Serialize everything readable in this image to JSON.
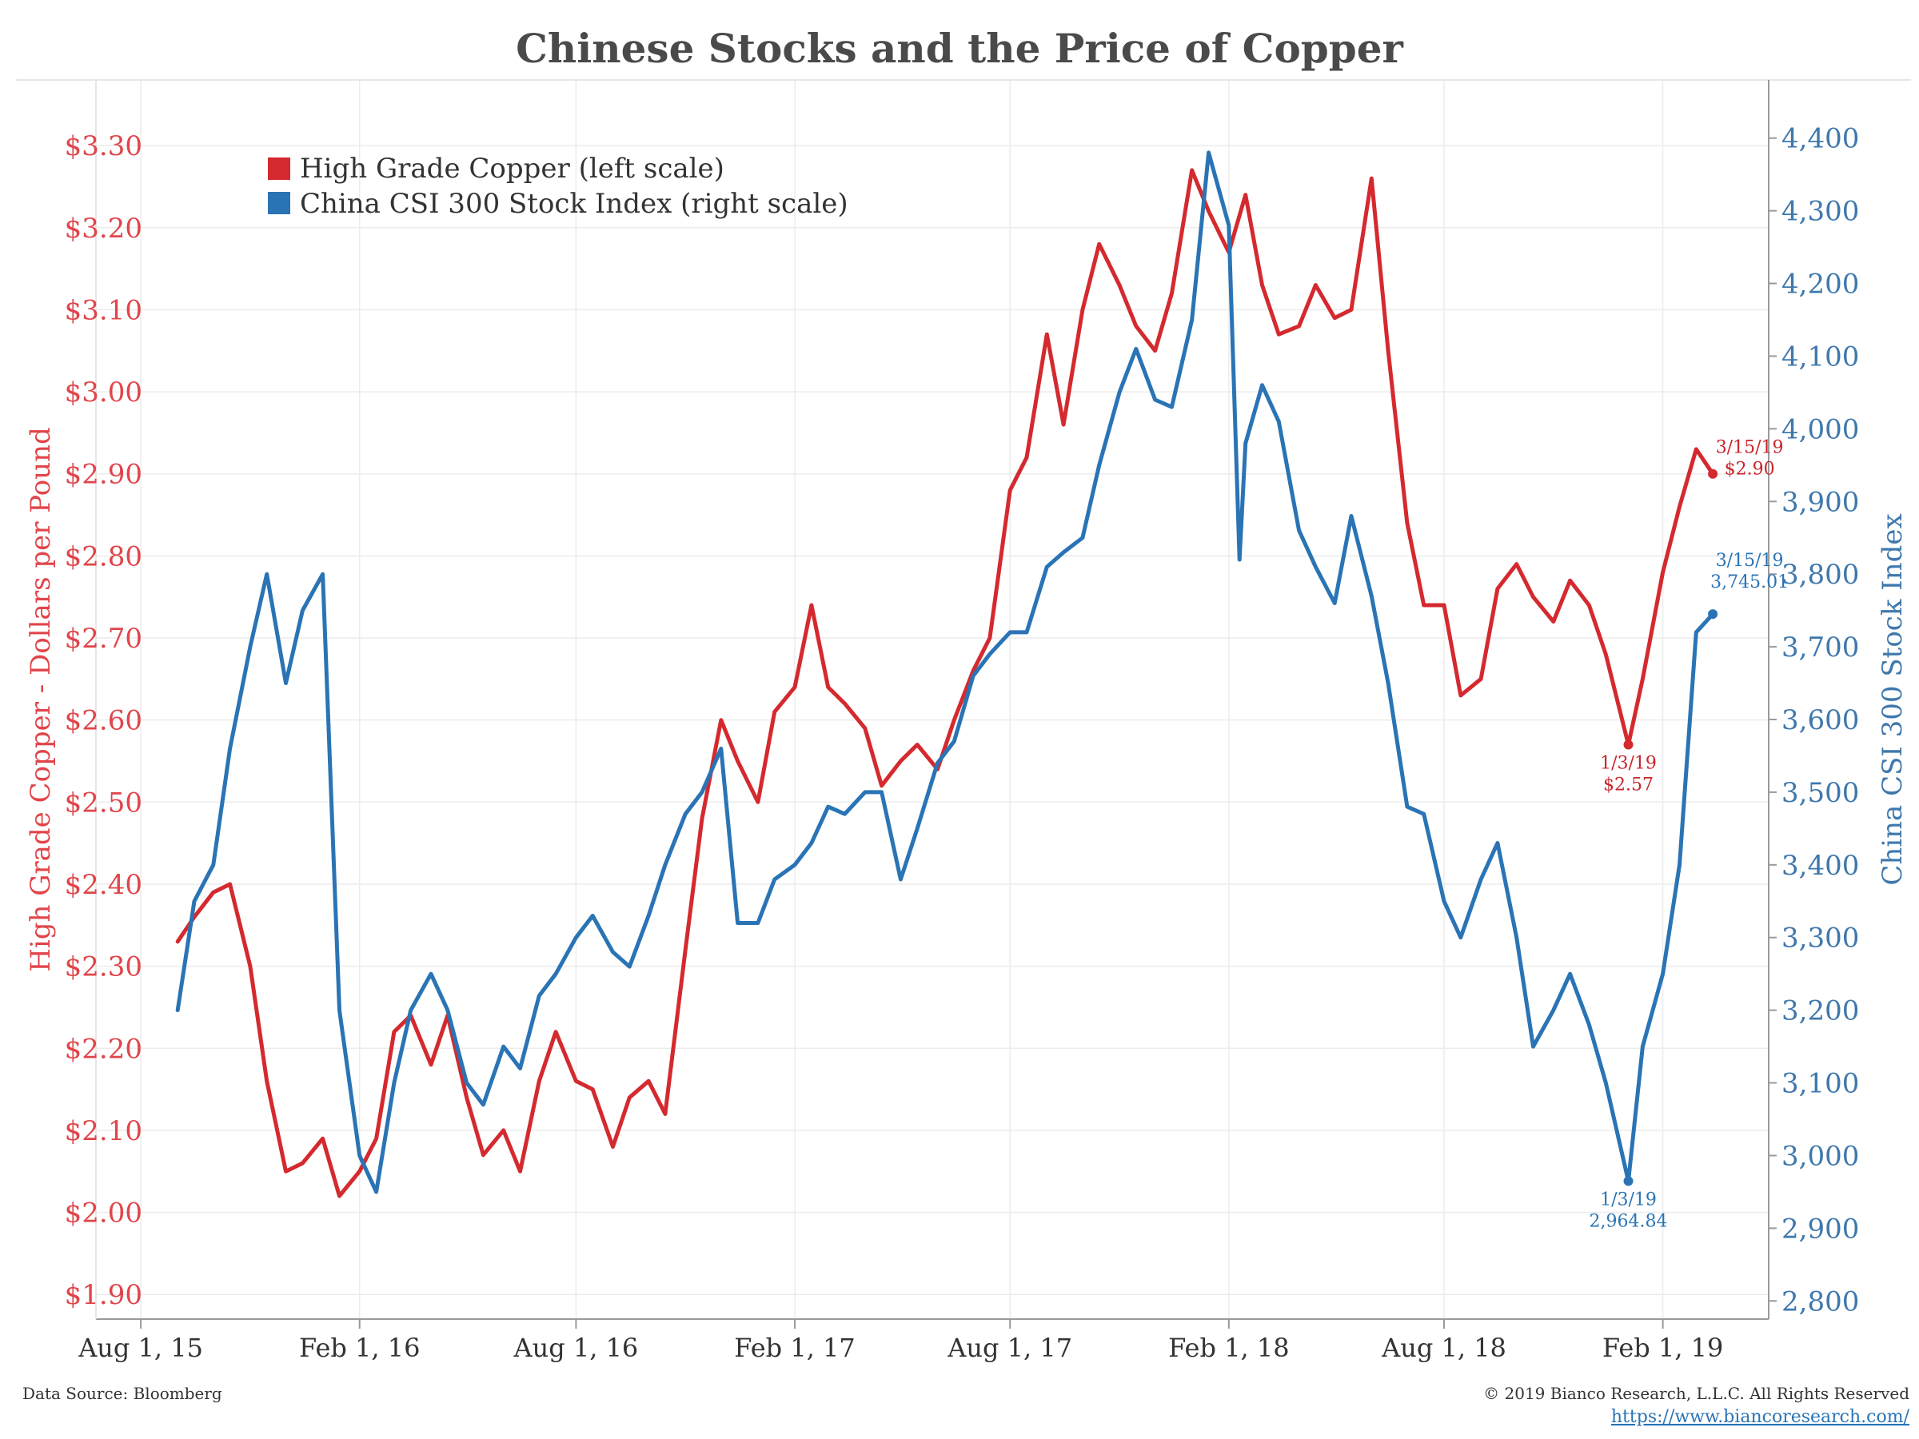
{
  "chart_data": {
    "type": "line",
    "title": "Chinese Stocks and the Price of Copper",
    "ylabel_left": "High Grade Copper - Dollars per Pound",
    "ylabel_right": "China CSI 300 Stock Index",
    "left_ticks": [
      {
        "value": 1.9,
        "label": "$1.90"
      },
      {
        "value": 2.0,
        "label": "$2.00"
      },
      {
        "value": 2.1,
        "label": "$2.10"
      },
      {
        "value": 2.2,
        "label": "$2.20"
      },
      {
        "value": 2.3,
        "label": "$2.30"
      },
      {
        "value": 2.4,
        "label": "$2.40"
      },
      {
        "value": 2.5,
        "label": "$2.50"
      },
      {
        "value": 2.6,
        "label": "$2.60"
      },
      {
        "value": 2.7,
        "label": "$2.70"
      },
      {
        "value": 2.8,
        "label": "$2.80"
      },
      {
        "value": 2.9,
        "label": "$2.90"
      },
      {
        "value": 3.0,
        "label": "$3.00"
      },
      {
        "value": 3.1,
        "label": "$3.10"
      },
      {
        "value": 3.2,
        "label": "$3.20"
      },
      {
        "value": 3.3,
        "label": "$3.30"
      }
    ],
    "right_ticks": [
      {
        "value": 2800,
        "label": "2,800"
      },
      {
        "value": 2900,
        "label": "2,900"
      },
      {
        "value": 3000,
        "label": "3,000"
      },
      {
        "value": 3100,
        "label": "3,100"
      },
      {
        "value": 3200,
        "label": "3,200"
      },
      {
        "value": 3300,
        "label": "3,300"
      },
      {
        "value": 3400,
        "label": "3,400"
      },
      {
        "value": 3500,
        "label": "3,500"
      },
      {
        "value": 3600,
        "label": "3,600"
      },
      {
        "value": 3700,
        "label": "3,700"
      },
      {
        "value": 3800,
        "label": "3,800"
      },
      {
        "value": 3900,
        "label": "3,900"
      },
      {
        "value": 4000,
        "label": "4,000"
      },
      {
        "value": 4100,
        "label": "4,100"
      },
      {
        "value": 4200,
        "label": "4,200"
      },
      {
        "value": 4300,
        "label": "4,300"
      },
      {
        "value": 4400,
        "label": "4,400"
      }
    ],
    "x_ticks": [
      {
        "date": "2015-08-01",
        "label": "Aug 1, 15"
      },
      {
        "date": "2016-02-01",
        "label": "Feb 1, 16"
      },
      {
        "date": "2016-08-01",
        "label": "Aug 1, 16"
      },
      {
        "date": "2017-02-01",
        "label": "Feb 1, 17"
      },
      {
        "date": "2017-08-01",
        "label": "Aug 1, 17"
      },
      {
        "date": "2018-02-01",
        "label": "Feb 1, 18"
      },
      {
        "date": "2018-08-01",
        "label": "Aug 1, 18"
      },
      {
        "date": "2019-02-01",
        "label": "Feb 1, 19"
      }
    ],
    "xlim": [
      "2015-07-01",
      "2019-05-01"
    ],
    "ylim_left": [
      1.87,
      3.38
    ],
    "ylim_right": [
      2775,
      4480
    ],
    "grid": true,
    "legend_position": "top-left",
    "series": [
      {
        "name": "High Grade Copper (left scale)",
        "axis": "left",
        "color": "#d42a2f",
        "points": [
          [
            "2015-09-01",
            2.33
          ],
          [
            "2015-09-15",
            2.36
          ],
          [
            "2015-10-01",
            2.39
          ],
          [
            "2015-10-15",
            2.4
          ],
          [
            "2015-11-01",
            2.3
          ],
          [
            "2015-11-15",
            2.16
          ],
          [
            "2015-12-01",
            2.05
          ],
          [
            "2015-12-15",
            2.06
          ],
          [
            "2016-01-01",
            2.09
          ],
          [
            "2016-01-15",
            2.02
          ],
          [
            "2016-02-01",
            2.05
          ],
          [
            "2016-02-15",
            2.09
          ],
          [
            "2016-03-01",
            2.22
          ],
          [
            "2016-03-15",
            2.24
          ],
          [
            "2016-04-01",
            2.18
          ],
          [
            "2016-04-15",
            2.24
          ],
          [
            "2016-05-01",
            2.14
          ],
          [
            "2016-05-15",
            2.07
          ],
          [
            "2016-06-01",
            2.1
          ],
          [
            "2016-06-15",
            2.05
          ],
          [
            "2016-07-01",
            2.16
          ],
          [
            "2016-07-15",
            2.22
          ],
          [
            "2016-08-01",
            2.16
          ],
          [
            "2016-08-15",
            2.15
          ],
          [
            "2016-09-01",
            2.08
          ],
          [
            "2016-09-15",
            2.14
          ],
          [
            "2016-10-01",
            2.16
          ],
          [
            "2016-10-15",
            2.12
          ],
          [
            "2016-11-01",
            2.32
          ],
          [
            "2016-11-15",
            2.48
          ],
          [
            "2016-12-01",
            2.6
          ],
          [
            "2016-12-15",
            2.55
          ],
          [
            "2017-01-01",
            2.5
          ],
          [
            "2017-01-15",
            2.61
          ],
          [
            "2017-02-01",
            2.64
          ],
          [
            "2017-02-15",
            2.74
          ],
          [
            "2017-03-01",
            2.64
          ],
          [
            "2017-03-15",
            2.62
          ],
          [
            "2017-04-01",
            2.59
          ],
          [
            "2017-04-15",
            2.52
          ],
          [
            "2017-05-01",
            2.55
          ],
          [
            "2017-05-15",
            2.57
          ],
          [
            "2017-06-01",
            2.54
          ],
          [
            "2017-06-15",
            2.6
          ],
          [
            "2017-07-01",
            2.66
          ],
          [
            "2017-07-15",
            2.7
          ],
          [
            "2017-08-01",
            2.88
          ],
          [
            "2017-08-15",
            2.92
          ],
          [
            "2017-09-01",
            3.07
          ],
          [
            "2017-09-15",
            2.96
          ],
          [
            "2017-10-01",
            3.1
          ],
          [
            "2017-10-15",
            3.18
          ],
          [
            "2017-11-01",
            3.13
          ],
          [
            "2017-11-15",
            3.08
          ],
          [
            "2017-12-01",
            3.05
          ],
          [
            "2017-12-15",
            3.12
          ],
          [
            "2018-01-01",
            3.27
          ],
          [
            "2018-01-15",
            3.22
          ],
          [
            "2018-02-01",
            3.17
          ],
          [
            "2018-02-15",
            3.24
          ],
          [
            "2018-03-01",
            3.13
          ],
          [
            "2018-03-15",
            3.07
          ],
          [
            "2018-04-01",
            3.08
          ],
          [
            "2018-04-15",
            3.13
          ],
          [
            "2018-05-01",
            3.09
          ],
          [
            "2018-05-15",
            3.1
          ],
          [
            "2018-06-01",
            3.26
          ],
          [
            "2018-06-15",
            3.05
          ],
          [
            "2018-07-01",
            2.84
          ],
          [
            "2018-07-15",
            2.74
          ],
          [
            "2018-08-01",
            2.74
          ],
          [
            "2018-08-15",
            2.63
          ],
          [
            "2018-09-01",
            2.65
          ],
          [
            "2018-09-15",
            2.76
          ],
          [
            "2018-10-01",
            2.79
          ],
          [
            "2018-10-15",
            2.75
          ],
          [
            "2018-11-01",
            2.72
          ],
          [
            "2018-11-15",
            2.77
          ],
          [
            "2018-12-01",
            2.74
          ],
          [
            "2018-12-15",
            2.68
          ],
          [
            "2019-01-03",
            2.57
          ],
          [
            "2019-01-15",
            2.65
          ],
          [
            "2019-02-01",
            2.78
          ],
          [
            "2019-02-15",
            2.86
          ],
          [
            "2019-03-01",
            2.93
          ],
          [
            "2019-03-15",
            2.9
          ]
        ]
      },
      {
        "name": "China CSI 300 Stock Index (right scale)",
        "axis": "right",
        "color": "#2a74b5",
        "points": [
          [
            "2015-09-01",
            3200
          ],
          [
            "2015-09-15",
            3350
          ],
          [
            "2015-10-01",
            3400
          ],
          [
            "2015-10-15",
            3560
          ],
          [
            "2015-11-01",
            3700
          ],
          [
            "2015-11-15",
            3800
          ],
          [
            "2015-12-01",
            3650
          ],
          [
            "2015-12-15",
            3750
          ],
          [
            "2016-01-01",
            3800
          ],
          [
            "2016-01-15",
            3200
          ],
          [
            "2016-02-01",
            3000
          ],
          [
            "2016-02-15",
            2950
          ],
          [
            "2016-03-01",
            3100
          ],
          [
            "2016-03-15",
            3200
          ],
          [
            "2016-04-01",
            3250
          ],
          [
            "2016-04-15",
            3200
          ],
          [
            "2016-05-01",
            3100
          ],
          [
            "2016-05-15",
            3070
          ],
          [
            "2016-06-01",
            3150
          ],
          [
            "2016-06-15",
            3120
          ],
          [
            "2016-07-01",
            3220
          ],
          [
            "2016-07-15",
            3250
          ],
          [
            "2016-08-01",
            3300
          ],
          [
            "2016-08-15",
            3330
          ],
          [
            "2016-09-01",
            3280
          ],
          [
            "2016-09-15",
            3260
          ],
          [
            "2016-10-01",
            3330
          ],
          [
            "2016-10-15",
            3400
          ],
          [
            "2016-11-01",
            3470
          ],
          [
            "2016-11-15",
            3500
          ],
          [
            "2016-12-01",
            3560
          ],
          [
            "2016-12-15",
            3320
          ],
          [
            "2017-01-01",
            3320
          ],
          [
            "2017-01-15",
            3380
          ],
          [
            "2017-02-01",
            3400
          ],
          [
            "2017-02-15",
            3430
          ],
          [
            "2017-03-01",
            3480
          ],
          [
            "2017-03-15",
            3470
          ],
          [
            "2017-04-01",
            3500
          ],
          [
            "2017-04-15",
            3500
          ],
          [
            "2017-05-01",
            3380
          ],
          [
            "2017-05-15",
            3450
          ],
          [
            "2017-06-01",
            3540
          ],
          [
            "2017-06-15",
            3570
          ],
          [
            "2017-07-01",
            3660
          ],
          [
            "2017-07-15",
            3690
          ],
          [
            "2017-08-01",
            3720
          ],
          [
            "2017-08-15",
            3720
          ],
          [
            "2017-09-01",
            3810
          ],
          [
            "2017-09-15",
            3830
          ],
          [
            "2017-10-01",
            3850
          ],
          [
            "2017-10-15",
            3950
          ],
          [
            "2017-11-01",
            4050
          ],
          [
            "2017-11-15",
            4110
          ],
          [
            "2017-12-01",
            4040
          ],
          [
            "2017-12-15",
            4030
          ],
          [
            "2018-01-01",
            4150
          ],
          [
            "2018-01-15",
            4380
          ],
          [
            "2018-02-01",
            4280
          ],
          [
            "2018-02-10",
            3820
          ],
          [
            "2018-02-15",
            3980
          ],
          [
            "2018-03-01",
            4060
          ],
          [
            "2018-03-15",
            4010
          ],
          [
            "2018-04-01",
            3860
          ],
          [
            "2018-04-15",
            3810
          ],
          [
            "2018-05-01",
            3760
          ],
          [
            "2018-05-15",
            3880
          ],
          [
            "2018-06-01",
            3770
          ],
          [
            "2018-06-15",
            3650
          ],
          [
            "2018-07-01",
            3480
          ],
          [
            "2018-07-15",
            3470
          ],
          [
            "2018-08-01",
            3350
          ],
          [
            "2018-08-15",
            3300
          ],
          [
            "2018-09-01",
            3380
          ],
          [
            "2018-09-15",
            3430
          ],
          [
            "2018-10-01",
            3300
          ],
          [
            "2018-10-15",
            3150
          ],
          [
            "2018-11-01",
            3200
          ],
          [
            "2018-11-15",
            3250
          ],
          [
            "2018-12-01",
            3180
          ],
          [
            "2018-12-15",
            3100
          ],
          [
            "2019-01-03",
            2964.84
          ],
          [
            "2019-01-15",
            3150
          ],
          [
            "2019-02-01",
            3250
          ],
          [
            "2019-02-15",
            3400
          ],
          [
            "2019-03-01",
            3720
          ],
          [
            "2019-03-15",
            3745.01
          ]
        ]
      }
    ],
    "annotations": [
      {
        "series": 0,
        "date": "2019-01-03",
        "value": 2.57,
        "lines": [
          "1/3/19",
          "$2.57"
        ],
        "placement": "below"
      },
      {
        "series": 0,
        "date": "2019-03-15",
        "value": 2.9,
        "lines": [
          "3/15/19",
          "$2.90"
        ],
        "placement": "right"
      },
      {
        "series": 1,
        "date": "2019-01-03",
        "value": 2964.84,
        "lines": [
          "1/3/19",
          "2,964.84"
        ],
        "placement": "below"
      },
      {
        "series": 1,
        "date": "2019-03-15",
        "value": 3745.01,
        "lines": [
          "3/15/19",
          "3,745.01"
        ],
        "placement": "right-above"
      }
    ]
  },
  "footer": {
    "source": "Data Source: Bloomberg",
    "copyright": "© 2019 Bianco Research, L.L.C. All Rights Reserved",
    "url": "https://www.biancoresearch.com/"
  }
}
